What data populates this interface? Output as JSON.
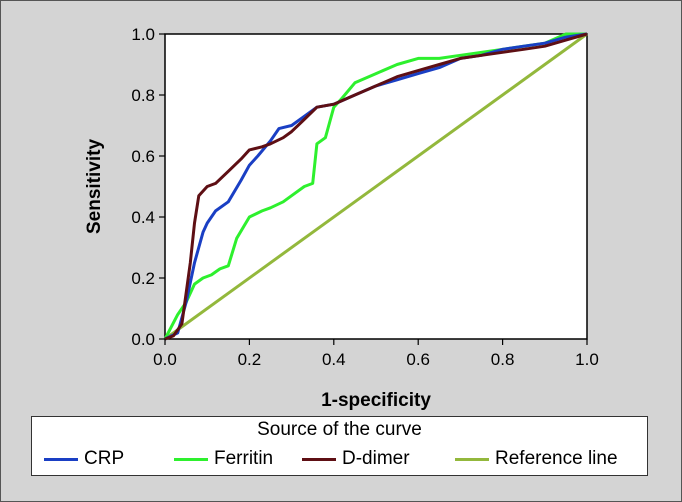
{
  "chart_data": {
    "type": "line",
    "xlabel": "1-specificity",
    "ylabel": "Sensitivity",
    "xlim": [
      0.0,
      1.0
    ],
    "ylim": [
      0.0,
      1.0
    ],
    "x_ticks": [
      "0.0",
      "0.2",
      "0.4",
      "0.6",
      "0.8",
      "1.0"
    ],
    "y_ticks": [
      "0.0",
      "0.2",
      "0.4",
      "0.6",
      "0.8",
      "1.0"
    ],
    "grid": false,
    "legend_title": "Source of the curve",
    "legend_position": "bottom",
    "series": [
      {
        "name": "CRP",
        "color": "#1a3fc4",
        "x": [
          0.0,
          0.03,
          0.05,
          0.07,
          0.09,
          0.1,
          0.12,
          0.15,
          0.18,
          0.2,
          0.22,
          0.25,
          0.27,
          0.3,
          0.33,
          0.36,
          0.4,
          0.45,
          0.5,
          0.55,
          0.6,
          0.65,
          0.7,
          0.75,
          0.8,
          0.85,
          0.9,
          0.95,
          1.0
        ],
        "y": [
          0.0,
          0.02,
          0.12,
          0.25,
          0.35,
          0.38,
          0.42,
          0.45,
          0.52,
          0.57,
          0.6,
          0.65,
          0.69,
          0.7,
          0.73,
          0.76,
          0.77,
          0.8,
          0.83,
          0.85,
          0.87,
          0.89,
          0.92,
          0.93,
          0.95,
          0.96,
          0.97,
          0.99,
          1.0
        ]
      },
      {
        "name": "Ferritin",
        "color": "#2ef02e",
        "x": [
          0.0,
          0.03,
          0.05,
          0.07,
          0.09,
          0.11,
          0.13,
          0.15,
          0.17,
          0.2,
          0.23,
          0.25,
          0.28,
          0.3,
          0.33,
          0.35,
          0.36,
          0.38,
          0.4,
          0.42,
          0.45,
          0.5,
          0.55,
          0.6,
          0.65,
          0.7,
          0.75,
          0.8,
          0.85,
          0.9,
          0.95,
          1.0
        ],
        "y": [
          0.0,
          0.08,
          0.12,
          0.18,
          0.2,
          0.21,
          0.23,
          0.24,
          0.33,
          0.4,
          0.42,
          0.43,
          0.45,
          0.47,
          0.5,
          0.51,
          0.64,
          0.66,
          0.76,
          0.79,
          0.84,
          0.87,
          0.9,
          0.92,
          0.92,
          0.93,
          0.94,
          0.95,
          0.96,
          0.97,
          1.0,
          1.0
        ]
      },
      {
        "name": "D-dimer",
        "color": "#5e0f14",
        "x": [
          0.0,
          0.02,
          0.04,
          0.05,
          0.06,
          0.07,
          0.08,
          0.1,
          0.12,
          0.15,
          0.18,
          0.2,
          0.23,
          0.25,
          0.28,
          0.3,
          0.33,
          0.36,
          0.4,
          0.45,
          0.5,
          0.55,
          0.6,
          0.65,
          0.7,
          0.75,
          0.8,
          0.85,
          0.9,
          0.95,
          1.0
        ],
        "y": [
          0.0,
          0.01,
          0.05,
          0.15,
          0.25,
          0.38,
          0.47,
          0.5,
          0.51,
          0.55,
          0.59,
          0.62,
          0.63,
          0.64,
          0.66,
          0.68,
          0.72,
          0.76,
          0.77,
          0.8,
          0.83,
          0.86,
          0.88,
          0.9,
          0.92,
          0.93,
          0.94,
          0.95,
          0.96,
          0.98,
          1.0
        ]
      },
      {
        "name": "Reference line",
        "color": "#93b83c",
        "x": [
          0.0,
          1.0
        ],
        "y": [
          0.0,
          1.0
        ]
      }
    ]
  }
}
